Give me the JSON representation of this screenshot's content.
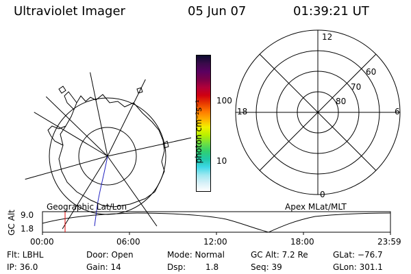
{
  "header": {
    "title": "Ultraviolet Imager",
    "date": "05 Jun 07",
    "time": "01:39:21 UT"
  },
  "colorbar": {
    "unit_label": "photon cm⁻²s⁻¹",
    "ticks": [
      "100",
      "10"
    ],
    "colors": [
      "#0b0b2e",
      "#3a0a4a",
      "#5a0060",
      "#7a0048",
      "#b0003a",
      "#d00010",
      "#e83a00",
      "#ff7800",
      "#ffb000",
      "#f0f000",
      "#b8f000",
      "#70e040",
      "#30d070",
      "#20c8a8",
      "#40d8e8",
      "#a0e8f0",
      "#d8f0f8",
      "#ffffff"
    ]
  },
  "left_map": {
    "caption": "Geographic Lat/Lon"
  },
  "right_grid": {
    "caption": "Apex MLat/MLT",
    "mlt_labels": [
      "12",
      "18",
      "6",
      "0"
    ],
    "mlat_labels": [
      "60",
      "70",
      "80"
    ]
  },
  "timeline": {
    "ylabel": "GC Alt",
    "y_ticks": [
      "9.0",
      "1.8"
    ],
    "x_ticks": [
      "00:00",
      "06:00",
      "12:00",
      "18:00",
      "23:59"
    ],
    "current_marker_time": "01:39"
  },
  "info": {
    "filter": "Flt: LBHL",
    "door": "Door: Open",
    "mode": "Mode: Normal",
    "gc_alt": "GC Alt: 7.2 Re",
    "glat": "GLat: −76.7",
    "ip": "IP: 36.0",
    "gain": "Gain: 14",
    "dsp_label": "Dsp:",
    "dsp_value": "1.8",
    "seq": "Seq: 39",
    "glon": "GLon: 301.1"
  }
}
